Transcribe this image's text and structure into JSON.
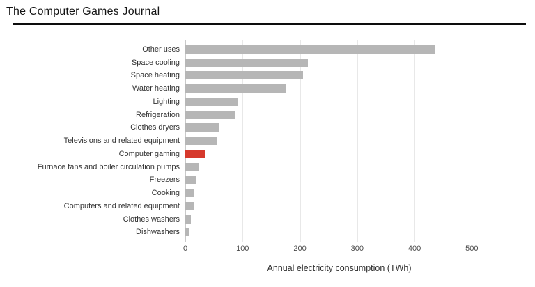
{
  "header": {
    "title": "The Computer Games Journal"
  },
  "chart_data": {
    "type": "bar",
    "orientation": "horizontal",
    "title": "",
    "xlabel": "Annual electricity consumption (TWh)",
    "ylabel": "",
    "categories": [
      "Other uses",
      "Space cooling",
      "Space heating",
      "Water heating",
      "Lighting",
      "Refrigeration",
      "Clothes dryers",
      "Televisions and related equipment",
      "Computer gaming",
      "Furnace fans and boiler circulation pumps",
      "Freezers",
      "Cooking",
      "Computers and related equipment",
      "Clothes washers",
      "Dishwashers"
    ],
    "values": [
      436,
      214,
      206,
      175,
      91,
      87,
      60,
      55,
      34,
      24,
      19,
      16,
      14,
      10,
      7
    ],
    "xticks": [
      0,
      100,
      200,
      300,
      400,
      500
    ],
    "xlim": [
      0,
      530
    ],
    "grid": true,
    "legend": false,
    "highlight_category": "Computer gaming",
    "bar_color": "#b6b6b6",
    "highlight_color": "#d6392c",
    "grid_color": "#e8e8e8",
    "axis_line_color": "#c9c9c9"
  }
}
